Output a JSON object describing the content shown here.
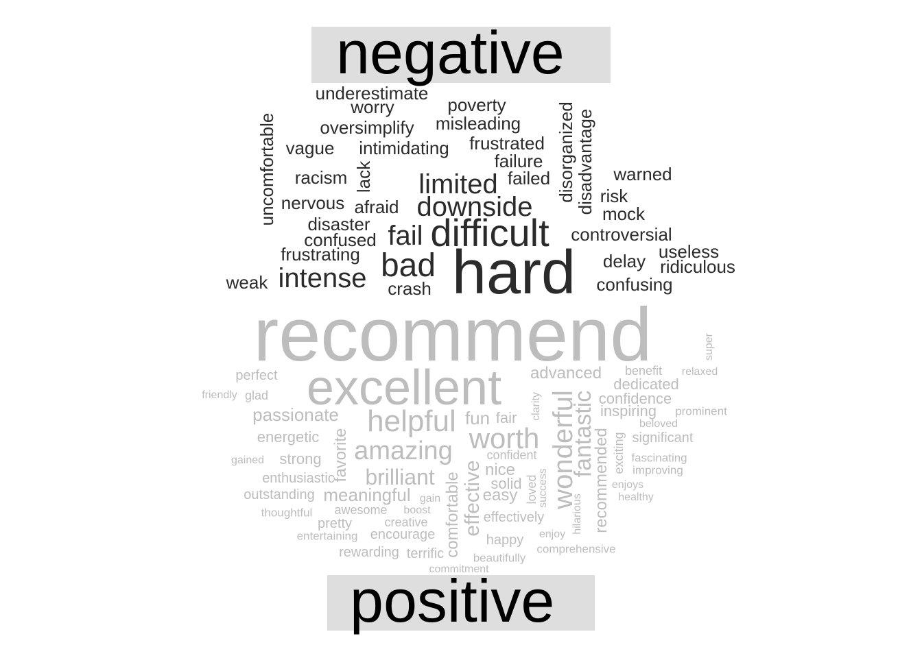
{
  "colors": {
    "negative": "#2b2b2b",
    "positive": "#bdbdbd",
    "label_box": "#dedede",
    "label_text": "#000000"
  },
  "groups": {
    "negative": {
      "label": "negative",
      "words": [
        {
          "text": "underestimate",
          "weight": 26
        },
        {
          "text": "worry",
          "weight": 26
        },
        {
          "text": "poverty",
          "weight": 26
        },
        {
          "text": "oversimplify",
          "weight": 26
        },
        {
          "text": "misleading",
          "weight": 26
        },
        {
          "text": "uncomfortable",
          "weight": 26
        },
        {
          "text": "disorganized",
          "weight": 26
        },
        {
          "text": "disadvantage",
          "weight": 26
        },
        {
          "text": "vague",
          "weight": 26
        },
        {
          "text": "intimidating",
          "weight": 26
        },
        {
          "text": "frustrated",
          "weight": 26
        },
        {
          "text": "failure",
          "weight": 26
        },
        {
          "text": "lack",
          "weight": 26
        },
        {
          "text": "racism",
          "weight": 26
        },
        {
          "text": "limited",
          "weight": 40
        },
        {
          "text": "failed",
          "weight": 26
        },
        {
          "text": "warned",
          "weight": 26
        },
        {
          "text": "nervous",
          "weight": 26
        },
        {
          "text": "afraid",
          "weight": 26
        },
        {
          "text": "downside",
          "weight": 40
        },
        {
          "text": "risk",
          "weight": 26
        },
        {
          "text": "mock",
          "weight": 26
        },
        {
          "text": "disaster",
          "weight": 26
        },
        {
          "text": "confused",
          "weight": 26
        },
        {
          "text": "fail",
          "weight": 40
        },
        {
          "text": "difficult",
          "weight": 56
        },
        {
          "text": "controversial",
          "weight": 26
        },
        {
          "text": "frustrating",
          "weight": 26
        },
        {
          "text": "bad",
          "weight": 48
        },
        {
          "text": "hard",
          "weight": 90
        },
        {
          "text": "useless",
          "weight": 26
        },
        {
          "text": "delay",
          "weight": 26
        },
        {
          "text": "ridiculous",
          "weight": 26
        },
        {
          "text": "weak",
          "weight": 26
        },
        {
          "text": "intense",
          "weight": 40
        },
        {
          "text": "crash",
          "weight": 26
        },
        {
          "text": "confusing",
          "weight": 26
        }
      ]
    },
    "positive": {
      "label": "positive",
      "words": [
        {
          "text": "recommend",
          "weight": 110
        },
        {
          "text": "super",
          "weight": 16
        },
        {
          "text": "perfect",
          "weight": 20
        },
        {
          "text": "excellent",
          "weight": 72
        },
        {
          "text": "advanced",
          "weight": 24
        },
        {
          "text": "benefit",
          "weight": 18
        },
        {
          "text": "relaxed",
          "weight": 16
        },
        {
          "text": "dedicated",
          "weight": 22
        },
        {
          "text": "friendly",
          "weight": 16
        },
        {
          "text": "glad",
          "weight": 18
        },
        {
          "text": "clarity",
          "weight": 16
        },
        {
          "text": "wonderful",
          "weight": 40
        },
        {
          "text": "fantastic",
          "weight": 34
        },
        {
          "text": "confidence",
          "weight": 22
        },
        {
          "text": "passionate",
          "weight": 26
        },
        {
          "text": "helpful",
          "weight": 44
        },
        {
          "text": "fun",
          "weight": 26
        },
        {
          "text": "fair",
          "weight": 22
        },
        {
          "text": "inspiring",
          "weight": 22
        },
        {
          "text": "prominent",
          "weight": 17
        },
        {
          "text": "beloved",
          "weight": 16
        },
        {
          "text": "energetic",
          "weight": 22
        },
        {
          "text": "favorite",
          "weight": 24
        },
        {
          "text": "worth",
          "weight": 42
        },
        {
          "text": "recommended",
          "weight": 24
        },
        {
          "text": "significant",
          "weight": 20
        },
        {
          "text": "amazing",
          "weight": 38
        },
        {
          "text": "exciting",
          "weight": 18
        },
        {
          "text": "gained",
          "weight": 16
        },
        {
          "text": "strong",
          "weight": 22
        },
        {
          "text": "confident",
          "weight": 18
        },
        {
          "text": "fascinating",
          "weight": 17
        },
        {
          "text": "improving",
          "weight": 17
        },
        {
          "text": "nice",
          "weight": 24
        },
        {
          "text": "enthusiastic",
          "weight": 20
        },
        {
          "text": "brilliant",
          "weight": 32
        },
        {
          "text": "effective",
          "weight": 30
        },
        {
          "text": "solid",
          "weight": 22
        },
        {
          "text": "success",
          "weight": 16
        },
        {
          "text": "enjoys",
          "weight": 16
        },
        {
          "text": "comfortable",
          "weight": 24
        },
        {
          "text": "loved",
          "weight": 18
        },
        {
          "text": "outstanding",
          "weight": 20
        },
        {
          "text": "meaningful",
          "weight": 26
        },
        {
          "text": "gain",
          "weight": 16
        },
        {
          "text": "easy",
          "weight": 24
        },
        {
          "text": "healthy",
          "weight": 16
        },
        {
          "text": "hilarious",
          "weight": 16
        },
        {
          "text": "thoughtful",
          "weight": 17
        },
        {
          "text": "awesome",
          "weight": 18
        },
        {
          "text": "boost",
          "weight": 16
        },
        {
          "text": "effectively",
          "weight": 20
        },
        {
          "text": "pretty",
          "weight": 20
        },
        {
          "text": "creative",
          "weight": 18
        },
        {
          "text": "entertaining",
          "weight": 17
        },
        {
          "text": "encourage",
          "weight": 20
        },
        {
          "text": "happy",
          "weight": 20
        },
        {
          "text": "enjoy",
          "weight": 16
        },
        {
          "text": "comprehensive",
          "weight": 17
        },
        {
          "text": "rewarding",
          "weight": 20
        },
        {
          "text": "terrific",
          "weight": 20
        },
        {
          "text": "beautifully",
          "weight": 17
        },
        {
          "text": "commitment",
          "weight": 16
        }
      ]
    }
  }
}
